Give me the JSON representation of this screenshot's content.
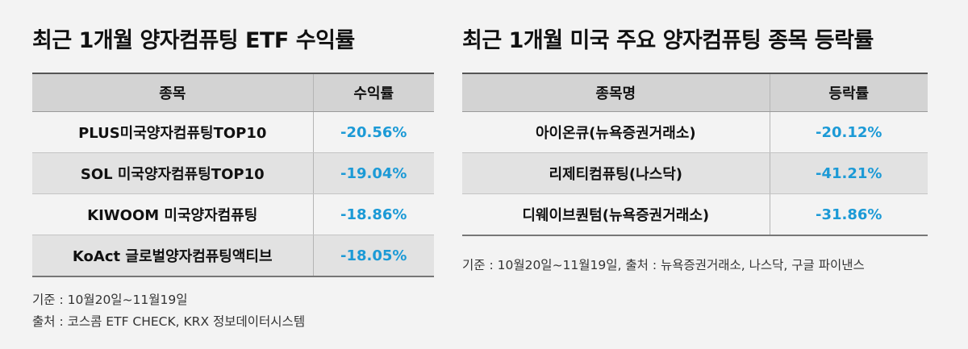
{
  "left": {
    "title": "최근 1개월 양자컴퓨팅 ETF 수익률",
    "headers": [
      "종목",
      "수익률"
    ],
    "rows": [
      {
        "name": "PLUS미국양자컴퓨팅TOP10",
        "value": "-20.56%"
      },
      {
        "name": "SOL 미국양자컴퓨팅TOP10",
        "value": "-19.04%"
      },
      {
        "name": "KIWOOM 미국양자컴퓨팅",
        "value": "-18.86%"
      },
      {
        "name": "KoAct 글로벌양자컴퓨팅액티브",
        "value": "-18.05%"
      }
    ],
    "note_period": "기준 : 10월20일~11월19일",
    "note_source": "출처 : 코스콤 ETF CHECK, KRX 정보데이터시스템"
  },
  "right": {
    "title": "최근 1개월 미국 주요 양자컴퓨팅 종목 등락률",
    "headers": [
      "종목명",
      "등락률"
    ],
    "rows": [
      {
        "name": "아이온큐(뉴욕증권거래소)",
        "value": "-20.12%"
      },
      {
        "name": "리제티컴퓨팅(나스닥)",
        "value": "-41.21%"
      },
      {
        "name": "디웨이브퀀텀(뉴욕증권거래소)",
        "value": "-31.86%"
      }
    ],
    "note": "기준 : 10월20일~11월19일, 출처 : 뉴욕증권거래소, 나스닥, 구글 파이낸스"
  },
  "colors": {
    "value_text": "#1c9ad6",
    "header_bg": "#d3d3d3",
    "shaded_row_bg": "#e2e2e2",
    "page_bg": "#f3f3f3"
  }
}
